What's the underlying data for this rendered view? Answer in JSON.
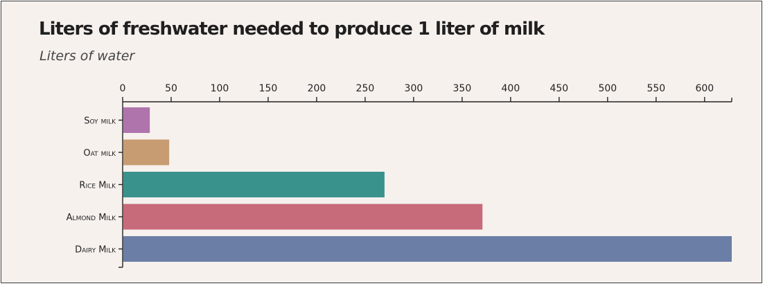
{
  "chart_data": {
    "type": "bar",
    "orientation": "horizontal",
    "title": "Liters of freshwater needed to produce 1 liter of milk",
    "subtitle": "Liters of water",
    "categories": [
      "Soy milk",
      "Oat milk",
      "Rice Milk",
      "Almond Milk",
      "Dairy Milk"
    ],
    "values": [
      28,
      48,
      270,
      371,
      628
    ],
    "colors": [
      "#b074ad",
      "#c79c72",
      "#3a928c",
      "#c76b7a",
      "#6a7ea6"
    ],
    "xlim": [
      0,
      628
    ],
    "ticks": [
      0,
      50,
      100,
      150,
      200,
      250,
      300,
      350,
      400,
      450,
      500,
      550,
      600
    ],
    "axis_position": "top",
    "grid": false
  },
  "colors": {
    "background": "#f7f1ee",
    "border": "#3a3a3a",
    "text": "#222222"
  }
}
